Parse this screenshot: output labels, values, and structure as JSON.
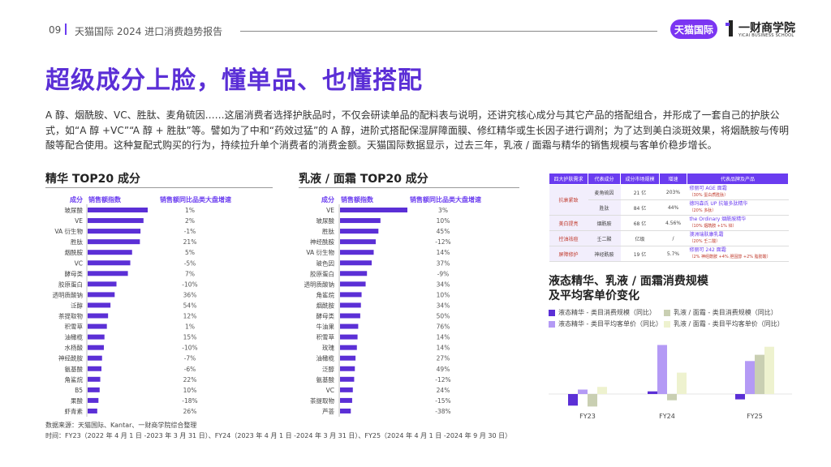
{
  "header": {
    "page_number": "09",
    "report_title": "天猫国际 2024 进口消费趋势报告",
    "logo_tmall": "天猫国际",
    "logo_yicai": "一财商学院",
    "logo_yicai_sub": "YICAI BUSINESS SCHOOL"
  },
  "main_title": "超级成分上脸，懂单品、也懂搭配",
  "intro": "A 醇、烟酰胺、VC、胜肽、麦角硫因……这届消费者选择护肤品时，不仅会研读单品的配料表与说明，还讲究核心成分与其它产品的搭配组合，并形成了一套自己的护肤公式，如“A 醇 +VC”“A 醇 + 胜肽”等。譬如为了中和“药效过猛”的 A 醇，进阶式搭配保湿屏障面膜、修红精华或生长因子进行调剂；为了达到美白淡斑效果，将烟酰胺与传明酸等配合使用。这种复配式购买的行为，持续拉升单个消费者的消费金额。天猫国际数据显示，过去三年，乳液 / 面霜与精华的销售规模与客单价稳步增长。",
  "essence": {
    "title": "精华 TOP20 成分",
    "col_ingredient": "成分",
    "col_index": "销售额指数",
    "col_growth": "销售额同比品类大盘增速"
  },
  "cream": {
    "title": "乳液 / 面霜 TOP20 成分",
    "col_ingredient": "成分",
    "col_index": "销售额指数",
    "col_growth": "销售额同比品类大盘增速"
  },
  "table": {
    "headers": [
      "四大护肤需求",
      "代表成分",
      "成分市场规模",
      "增速",
      "代表品牌及产品"
    ],
    "rows": [
      {
        "need": "抗衰紧致",
        "ingredient": "麦角硫因",
        "size": "21 亿",
        "growth": "203%",
        "product": "修丽可 AGE 面霜",
        "note": "（30% 蛋白质胜肽）"
      },
      {
        "need": "",
        "ingredient": "胜肽",
        "size": "84 亿",
        "growth": "44%",
        "product": "德玛森氏 UP 抗皱多肽精华",
        "note": "（20% 多肽）"
      },
      {
        "need": "美白提亮",
        "ingredient": "烟酰胺",
        "size": "68 亿",
        "growth": "4.56%",
        "product": "the Ordinary 烟酰胺精华",
        "note": "（10% 烟酰胺 +1% 锌）"
      },
      {
        "need": "控油祛痘",
        "ingredient": "壬二酸",
        "size": "亿级",
        "growth": "/",
        "product": "澳洲瑞肤康乳霜",
        "note": "（20% 壬二酸）"
      },
      {
        "need": "屏障修护",
        "ingredient": "神经酰胺",
        "size": "19 亿",
        "growth": "5.7%",
        "product": "修丽可 242 面霜",
        "note": "（2% 神经酰胺 +4% 胆固醇 +2% 脂肪酸）"
      }
    ]
  },
  "trend": {
    "title_line1": "液态精华、乳液 / 面霜消费规模",
    "title_line2": "及平均客单价变化"
  },
  "source": {
    "line1": "数据来源：天猫国际、Kantar、一财商学院综合整理",
    "line2": "时间：FY23（2022 年 4 月 1 日 -2023 年 3 月 31 日）、FY24（2023 年 4 月 1 日 -2024 年 3 月 31 日）、FY25（2024 年 4 月 1 日 -2024 年 9 月 30 日）"
  },
  "chart_data": [
    {
      "type": "bar",
      "orientation": "horizontal",
      "title": "精华 TOP20 成分",
      "categories": [
        "玻尿酸",
        "VE",
        "VA 衍生物",
        "胜肽",
        "烟酰胺",
        "VC",
        "酵母类",
        "胶原蛋白",
        "透明质酸钠",
        "泛醇",
        "茶提取物",
        "积雪草",
        "油橄榄",
        "水杨酸",
        "神经酰胺",
        "氨基酸",
        "角鲨烷",
        "B5",
        "果酸",
        "虾青素"
      ],
      "series": [
        {
          "name": "销售额指数",
          "values": [
            100,
            93,
            88,
            87,
            74,
            71,
            67,
            48,
            45,
            38,
            34,
            32,
            28,
            27,
            24,
            23,
            21,
            20,
            18,
            16
          ]
        },
        {
          "name": "销售额同比品类大盘增速",
          "labels": [
            "1%",
            "2%",
            "-1%",
            "21%",
            "5%",
            "-5%",
            "7%",
            "-10%",
            "36%",
            "54%",
            "12%",
            "1%",
            "15%",
            "-10%",
            "-7%",
            "-6%",
            "22%",
            "10%",
            "-18%",
            "26%"
          ]
        }
      ],
      "bar_color": "#5b2fd6"
    },
    {
      "type": "bar",
      "orientation": "horizontal",
      "title": "乳液 / 面霜 TOP20 成分",
      "categories": [
        "VE",
        "玻尿酸",
        "胜肽",
        "神经酰胺",
        "VA 衍生物",
        "玻色因",
        "胶原蛋白",
        "透明质酸钠",
        "角鲨烷",
        "烟酰胺",
        "酵母类",
        "牛油果",
        "积雪草",
        "玫瑰",
        "油橄榄",
        "泛醇",
        "氨基酸",
        "VC",
        "茶提取物",
        "芦荟"
      ],
      "series": [
        {
          "name": "销售额指数",
          "values": [
            100,
            60,
            57,
            53,
            50,
            47,
            40,
            38,
            32,
            31,
            30,
            27,
            26,
            25,
            23,
            22,
            21,
            19,
            18,
            16
          ]
        },
        {
          "name": "销售额同比品类大盘增速",
          "labels": [
            "3%",
            "10%",
            "45%",
            "-12%",
            "14%",
            "37%",
            "-9%",
            "34%",
            "10%",
            "34%",
            "50%",
            "76%",
            "14%",
            "14%",
            "27%",
            "49%",
            "-12%",
            "24%",
            "-15%",
            "-38%"
          ]
        }
      ],
      "bar_color": "#5b2fd6"
    },
    {
      "type": "bar",
      "title": "液态精华、乳液 / 面霜消费规模及平均客单价变化",
      "categories": [
        "FY23",
        "FY24",
        "FY25"
      ],
      "series": [
        {
          "name": "液态精华 - 类目消费规模（同比）",
          "color": "#5b2fd6",
          "values": [
            -13,
            3,
            -6
          ]
        },
        {
          "name": "液态精华 - 类目平均客单价（同比）",
          "color": "#b49af5",
          "values": [
            5,
            55,
            37
          ]
        },
        {
          "name": "乳液 / 面霜 - 类目消费规模（同比）",
          "color": "#c9cfb2",
          "values": [
            -14,
            -7,
            44
          ]
        },
        {
          "name": "乳液 / 面霜 - 类目平均客单价（同比）",
          "color": "#eef2cf",
          "values": [
            8,
            24,
            53
          ]
        }
      ]
    }
  ]
}
